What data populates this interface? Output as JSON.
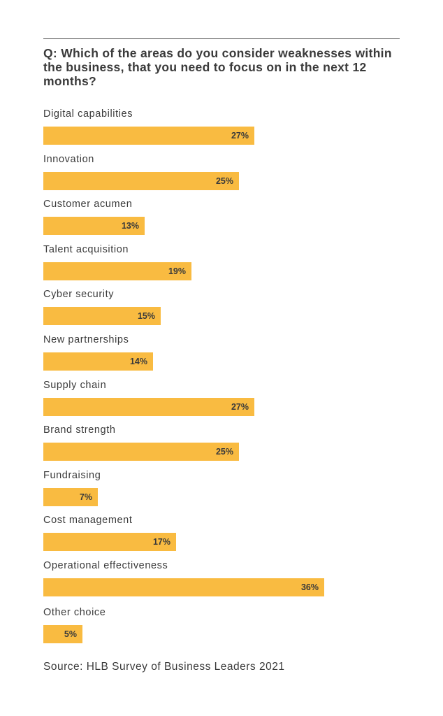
{
  "chart_data": {
    "type": "bar",
    "orientation": "horizontal",
    "title": "Q: Which of the areas do you consider weaknesses within the business, that you need to focus on in the next 12 months?",
    "categories": [
      "Digital capabilities",
      "Innovation",
      "Customer acumen",
      "Talent acquisition",
      "Cyber security",
      "New partnerships",
      "Supply chain",
      "Brand strength",
      "Fundraising",
      "Cost management",
      "Operational effectiveness",
      "Other choice"
    ],
    "values": [
      27,
      25,
      13,
      19,
      15,
      14,
      27,
      25,
      7,
      17,
      36,
      5
    ],
    "value_labels": [
      "27%",
      "25%",
      "13%",
      "19%",
      "15%",
      "14%",
      "27%",
      "25%",
      "7%",
      "17%",
      "36%",
      "5%"
    ],
    "unit": "%",
    "bar_color": "#f9bb41",
    "grid": false,
    "legend": "none",
    "source": "Source: HLB Survey of Business Leaders 2021"
  }
}
